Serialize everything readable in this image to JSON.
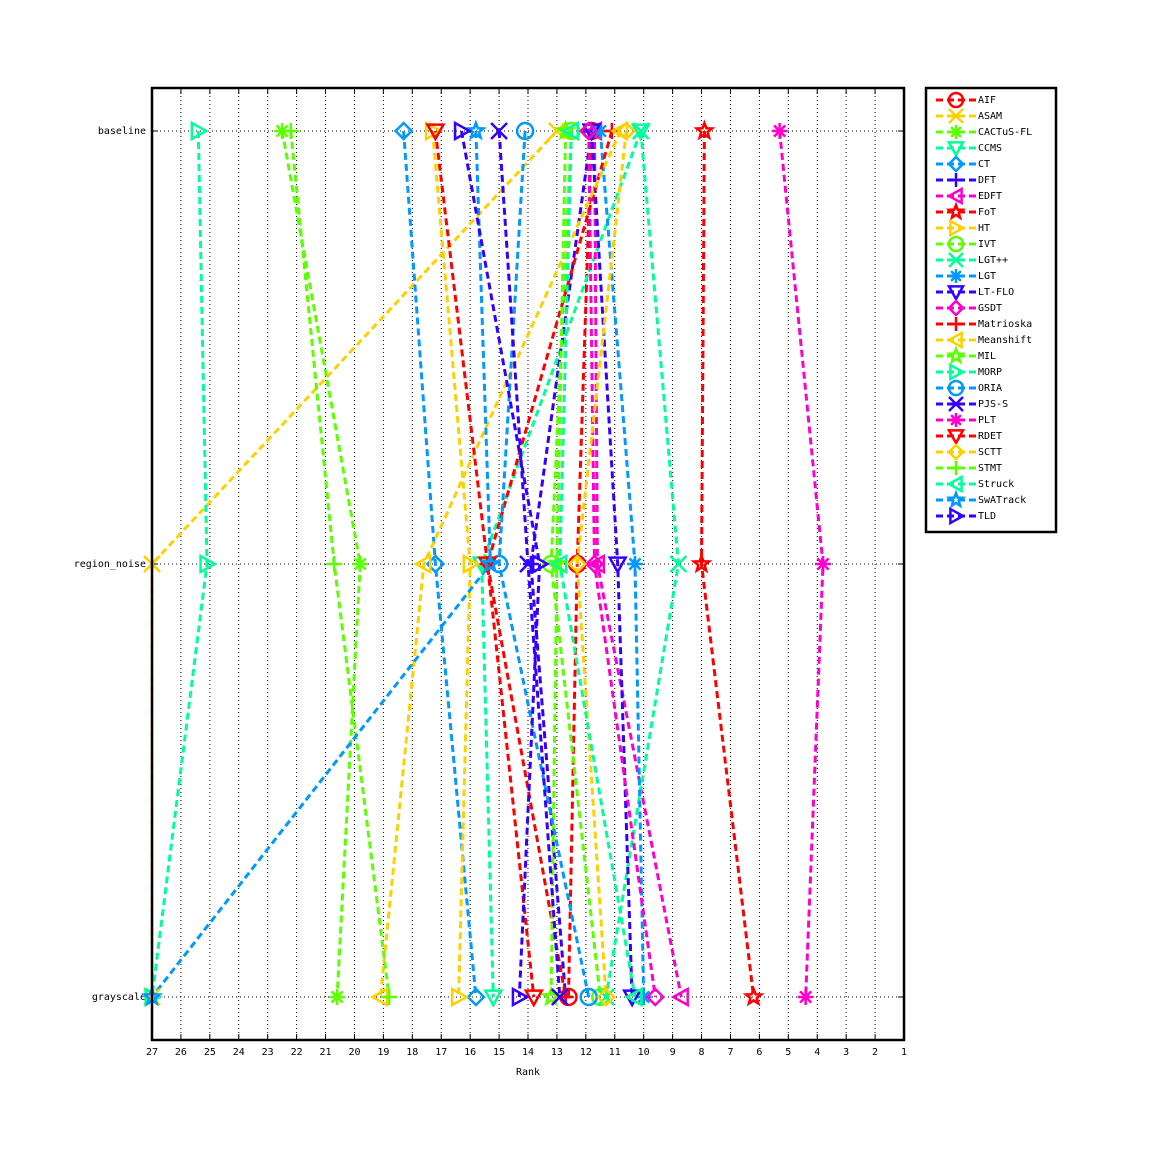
{
  "chart_data": {
    "type": "rank-line",
    "categories": [
      "baseline",
      "region_noise",
      "grayscale"
    ],
    "x_label": "Rank",
    "xlim": [
      27,
      1
    ],
    "xticks": [
      27,
      26,
      25,
      24,
      23,
      22,
      21,
      20,
      19,
      18,
      17,
      16,
      15,
      14,
      13,
      12,
      11,
      10,
      9,
      8,
      7,
      6,
      5,
      4,
      3,
      2,
      1
    ],
    "grid": true,
    "legend": "outside-right",
    "series": [
      {
        "name": "AIF",
        "color": "#ff0000",
        "marker": "circle",
        "values": [
          11.8,
          12.3,
          12.6
        ]
      },
      {
        "name": "ASAM",
        "color": "#ffd000",
        "marker": "x",
        "values": [
          13,
          27,
          27
        ]
      },
      {
        "name": "CACTuS-FL",
        "color": "#5cff00",
        "marker": "asterisk",
        "values": [
          22.5,
          19.8,
          20.6
        ]
      },
      {
        "name": "CCMS",
        "color": "#00ff99",
        "marker": "triangle-down",
        "values": [
          10.1,
          15.6,
          15.2
        ]
      },
      {
        "name": "CT",
        "color": "#0099ff",
        "marker": "diamond",
        "values": [
          18.3,
          17.2,
          15.8
        ]
      },
      {
        "name": "DFT",
        "color": "#3300ff",
        "marker": "plus",
        "values": [
          11.8,
          13.9,
          12.7
        ]
      },
      {
        "name": "EDFT",
        "color": "#ff00cc",
        "marker": "triangle-left",
        "values": [
          11.7,
          11.6,
          8.7
        ]
      },
      {
        "name": "FoT",
        "color": "#ff0000",
        "marker": "pentagram",
        "values": [
          7.9,
          8.0,
          6.2
        ]
      },
      {
        "name": "HT",
        "color": "#ffd000",
        "marker": "triangle-right",
        "values": [
          17.3,
          16.0,
          16.4
        ]
      },
      {
        "name": "IVT",
        "color": "#5cff00",
        "marker": "circle",
        "values": [
          12.5,
          13.2,
          11.5
        ]
      },
      {
        "name": "LGT++",
        "color": "#00ff99",
        "marker": "x",
        "values": [
          10.1,
          8.8,
          11.3
        ]
      },
      {
        "name": "LGT",
        "color": "#0099ff",
        "marker": "asterisk",
        "values": [
          11.5,
          10.3,
          10.0
        ]
      },
      {
        "name": "LT-FLO",
        "color": "#3300ff",
        "marker": "triangle-down",
        "values": [
          11.8,
          10.9,
          10.4
        ]
      },
      {
        "name": "GSDT",
        "color": "#ff00cc",
        "marker": "diamond",
        "values": [
          11.9,
          11.7,
          9.6
        ]
      },
      {
        "name": "Matrioska",
        "color": "#ff0000",
        "marker": "plus",
        "values": [
          11.1,
          15.4,
          12.7
        ]
      },
      {
        "name": "Meanshift",
        "color": "#ffd000",
        "marker": "triangle-left",
        "values": [
          10.8,
          17.6,
          19.1
        ]
      },
      {
        "name": "MIL",
        "color": "#5cff00",
        "marker": "pentagram",
        "values": [
          12.7,
          13.0,
          13.2
        ]
      },
      {
        "name": "MORP",
        "color": "#00ff99",
        "marker": "triangle-right",
        "values": [
          25.4,
          25.1,
          27
        ]
      },
      {
        "name": "ORIA",
        "color": "#0099ff",
        "marker": "circle",
        "values": [
          14.1,
          15.0,
          11.9
        ]
      },
      {
        "name": "PJS-S",
        "color": "#3300ff",
        "marker": "x",
        "values": [
          15.0,
          14.0,
          12.9
        ]
      },
      {
        "name": "PLT",
        "color": "#ff00cc",
        "marker": "asterisk",
        "values": [
          5.3,
          3.8,
          4.4
        ]
      },
      {
        "name": "RDET",
        "color": "#ff0000",
        "marker": "triangle-down",
        "values": [
          17.2,
          15.4,
          13.8
        ]
      },
      {
        "name": "SCTT",
        "color": "#ffd000",
        "marker": "diamond",
        "values": [
          10.6,
          12.3,
          11.3
        ]
      },
      {
        "name": "STMT",
        "color": "#5cff00",
        "marker": "plus",
        "values": [
          22.2,
          20.7,
          18.8
        ]
      },
      {
        "name": "Struck",
        "color": "#00ff99",
        "marker": "triangle-left",
        "values": [
          12.5,
          12.9,
          10.3
        ]
      },
      {
        "name": "SwATrack",
        "color": "#0099ff",
        "marker": "pentagram",
        "values": [
          15.8,
          15.3,
          27
        ]
      },
      {
        "name": "TLD",
        "color": "#3300ff",
        "marker": "triangle-right",
        "values": [
          16.3,
          13.6,
          14.3
        ]
      }
    ]
  }
}
